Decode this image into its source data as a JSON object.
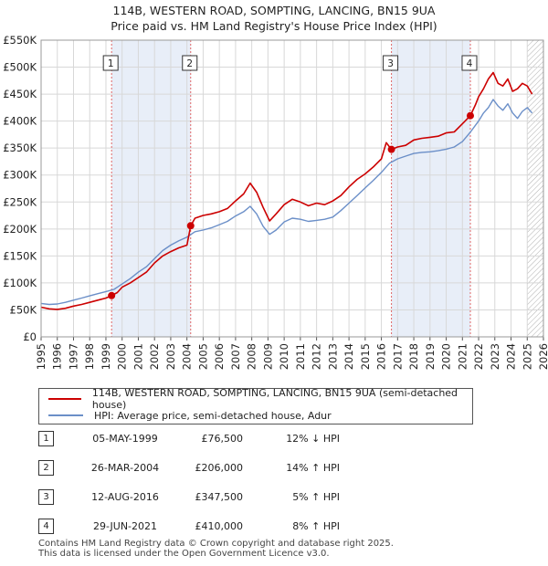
{
  "title_line1": "114B, WESTERN ROAD, SOMPTING, LANCING, BN15 9UA",
  "title_line2": "Price paid vs. HM Land Registry's House Price Index (HPI)",
  "colors": {
    "price_line": "#cc0000",
    "hpi_line": "#6b8fc8",
    "shade": "#e8eef8",
    "grid": "#d8d8d8",
    "vline": "#e06666"
  },
  "chart_data": {
    "type": "line",
    "y_ticks": [
      "£0",
      "£50K",
      "£100K",
      "£150K",
      "£200K",
      "£250K",
      "£300K",
      "£350K",
      "£400K",
      "£450K",
      "£500K",
      "£550K"
    ],
    "x_ticks": [
      "1995",
      "1996",
      "1997",
      "1998",
      "1999",
      "2000",
      "2001",
      "2002",
      "2003",
      "2004",
      "2005",
      "2006",
      "2007",
      "2008",
      "2009",
      "2010",
      "2011",
      "2012",
      "2013",
      "2014",
      "2015",
      "2016",
      "2017",
      "2018",
      "2019",
      "2020",
      "2021",
      "2022",
      "2023",
      "2024",
      "2025",
      "2026"
    ],
    "ylim": [
      0,
      550000
    ],
    "xlim": [
      1995,
      2026
    ],
    "shaded_ranges": [
      [
        1999.35,
        2004.23
      ],
      [
        2016.62,
        2021.49
      ]
    ],
    "hatched_from": 2025.0,
    "series": [
      {
        "name": "114B, WESTERN ROAD, SOMPTING, LANCING, BN15 9UA (semi-detached house)",
        "x": [
          1995.0,
          1995.5,
          1996.0,
          1996.5,
          1997.0,
          1997.5,
          1998.0,
          1998.5,
          1999.0,
          1999.35,
          1999.7,
          2000.0,
          2000.5,
          2001.0,
          2001.5,
          2002.0,
          2002.5,
          2003.0,
          2003.5,
          2004.0,
          2004.23,
          2004.5,
          2005.0,
          2005.5,
          2006.0,
          2006.5,
          2007.0,
          2007.5,
          2007.9,
          2008.3,
          2008.7,
          2009.1,
          2009.5,
          2010.0,
          2010.5,
          2011.0,
          2011.5,
          2012.0,
          2012.5,
          2013.0,
          2013.5,
          2014.0,
          2014.5,
          2015.0,
          2015.5,
          2016.0,
          2016.3,
          2016.62,
          2017.0,
          2017.5,
          2018.0,
          2018.5,
          2019.0,
          2019.5,
          2020.0,
          2020.5,
          2021.0,
          2021.49,
          2021.8,
          2022.0,
          2022.3,
          2022.6,
          2022.9,
          2023.2,
          2023.5,
          2023.8,
          2024.1,
          2024.4,
          2024.7,
          2025.0,
          2025.3
        ],
        "values": [
          55000,
          52000,
          51000,
          53000,
          57000,
          60000,
          64000,
          68000,
          72000,
          76500,
          82000,
          92000,
          100000,
          110000,
          120000,
          137000,
          150000,
          158000,
          165000,
          170000,
          206000,
          220000,
          225000,
          228000,
          232000,
          238000,
          252000,
          265000,
          285000,
          268000,
          240000,
          215000,
          228000,
          245000,
          255000,
          250000,
          243000,
          248000,
          245000,
          252000,
          262000,
          278000,
          292000,
          302000,
          315000,
          330000,
          360000,
          347500,
          352000,
          355000,
          365000,
          368000,
          370000,
          372000,
          378000,
          380000,
          395000,
          410000,
          430000,
          445000,
          460000,
          478000,
          490000,
          470000,
          465000,
          478000,
          455000,
          460000,
          470000,
          465000,
          450000
        ]
      },
      {
        "name": "HPI: Average price, semi-detached house, Adur",
        "x": [
          1995.0,
          1995.5,
          1996.0,
          1996.5,
          1997.0,
          1997.5,
          1998.0,
          1998.5,
          1999.0,
          1999.5,
          2000.0,
          2000.5,
          2001.0,
          2001.5,
          2002.0,
          2002.5,
          2003.0,
          2003.5,
          2004.0,
          2004.5,
          2005.0,
          2005.5,
          2006.0,
          2006.5,
          2007.0,
          2007.5,
          2007.9,
          2008.3,
          2008.7,
          2009.1,
          2009.5,
          2010.0,
          2010.5,
          2011.0,
          2011.5,
          2012.0,
          2012.5,
          2013.0,
          2013.5,
          2014.0,
          2014.5,
          2015.0,
          2015.5,
          2016.0,
          2016.5,
          2017.0,
          2017.5,
          2018.0,
          2018.5,
          2019.0,
          2019.5,
          2020.0,
          2020.5,
          2021.0,
          2021.5,
          2022.0,
          2022.3,
          2022.6,
          2022.9,
          2023.2,
          2023.5,
          2023.8,
          2024.1,
          2024.4,
          2024.7,
          2025.0,
          2025.3
        ],
        "values": [
          62000,
          60000,
          61000,
          64000,
          68000,
          72000,
          76000,
          80000,
          84000,
          88000,
          98000,
          108000,
          120000,
          130000,
          145000,
          160000,
          170000,
          178000,
          185000,
          195000,
          198000,
          202000,
          208000,
          214000,
          224000,
          232000,
          242000,
          228000,
          205000,
          190000,
          198000,
          213000,
          220000,
          218000,
          214000,
          216000,
          218000,
          222000,
          234000,
          248000,
          262000,
          276000,
          290000,
          305000,
          322000,
          330000,
          335000,
          340000,
          342000,
          343000,
          345000,
          348000,
          352000,
          362000,
          380000,
          400000,
          415000,
          425000,
          440000,
          428000,
          420000,
          432000,
          415000,
          405000,
          418000,
          425000,
          415000
        ]
      }
    ],
    "sale_markers": [
      {
        "label": "1",
        "x": 1999.35,
        "y": 76500
      },
      {
        "label": "2",
        "x": 2004.23,
        "y": 206000
      },
      {
        "label": "3",
        "x": 2016.62,
        "y": 347500
      },
      {
        "label": "4",
        "x": 2021.49,
        "y": 410000
      }
    ]
  },
  "legend": {
    "price_label": "114B, WESTERN ROAD, SOMPTING, LANCING, BN15 9UA (semi-detached house)",
    "hpi_label": "HPI: Average price, semi-detached house, Adur"
  },
  "sales": [
    {
      "num": "1",
      "date": "05-MAY-1999",
      "price": "£76,500",
      "hpi": "12% ↓ HPI"
    },
    {
      "num": "2",
      "date": "26-MAR-2004",
      "price": "£206,000",
      "hpi": "14% ↑ HPI"
    },
    {
      "num": "3",
      "date": "12-AUG-2016",
      "price": "£347,500",
      "hpi": "5% ↑ HPI"
    },
    {
      "num": "4",
      "date": "29-JUN-2021",
      "price": "£410,000",
      "hpi": "8% ↑ HPI"
    }
  ],
  "footer": {
    "line1": "Contains HM Land Registry data © Crown copyright and database right 2025.",
    "line2": "This data is licensed under the Open Government Licence v3.0."
  }
}
